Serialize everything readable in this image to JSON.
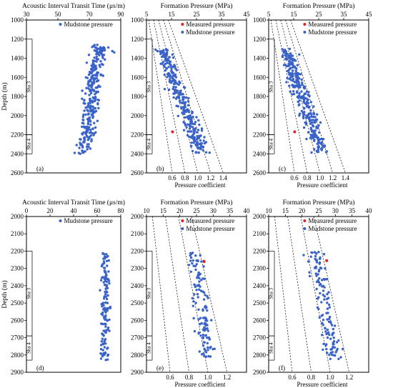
{
  "chart_data": [
    {
      "id": "a",
      "type": "scatter",
      "panel_label": "(a)",
      "title": "Acoustic Interval Transit Time (μs/m)",
      "ylabel": "Depth (m)",
      "xlim": [
        30,
        90
      ],
      "ylim": [
        1000,
        2600
      ],
      "xticks": [
        30,
        50,
        70,
        90
      ],
      "yticks": [
        1000,
        1200,
        1400,
        1600,
        1800,
        2000,
        2200,
        2400,
        2600
      ],
      "legend": [
        {
          "label": "Mudstone pressure",
          "color": "#3a63c9"
        }
      ],
      "units": [
        {
          "label": "Sha 3",
          "from": 1200,
          "to": 2200
        },
        {
          "label": "Sha 4",
          "from": 2200,
          "to": 2400
        }
      ],
      "cloud": {
        "depth_from": 1260,
        "depth_to": 2400,
        "x_from": [
          76,
          78
        ],
        "x_to": [
          62,
          70
        ],
        "spread": 6,
        "count": 300,
        "seed": 11
      },
      "measured": [],
      "coefficient_lines": []
    },
    {
      "id": "b",
      "type": "scatter",
      "panel_label": "(b)",
      "title": "Formation Pressure (MPa)",
      "xlabel": "Pressure coefficient",
      "xlim": [
        5,
        45
      ],
      "ylim": [
        1000,
        2600
      ],
      "xticks": [
        5,
        15,
        25,
        35,
        45
      ],
      "yticks": [
        1000,
        1200,
        1400,
        1600,
        1800,
        2000,
        2200,
        2400,
        2600
      ],
      "legend": [
        {
          "label": "Measured pressure",
          "color": "#e02020"
        },
        {
          "label": "Mudstone pressure",
          "color": "#3a63c9"
        }
      ],
      "units": [
        {
          "label": "Sha 3",
          "from": 1200,
          "to": 2200
        },
        {
          "label": "Sha 4",
          "from": 2200,
          "to": 2400
        }
      ],
      "cloud": {
        "depth_from": 1300,
        "depth_to": 2390,
        "x_from": [
          10,
          13
        ],
        "x_to": [
          24,
          30
        ],
        "spread": 3.2,
        "count": 300,
        "seed": 23
      },
      "measured": [
        {
          "pressure": 15.4,
          "depth": 2170
        }
      ],
      "coefficient_lines": [
        0.6,
        0.8,
        1.0,
        1.2,
        1.4
      ]
    },
    {
      "id": "c",
      "type": "scatter",
      "panel_label": "(c)",
      "title": "Formation Pressure (MPa)",
      "xlabel": "Pressure coefficient",
      "xlim": [
        5,
        45
      ],
      "ylim": [
        1000,
        2600
      ],
      "xticks": [
        5,
        15,
        25,
        35,
        45
      ],
      "yticks": [
        1000,
        1200,
        1400,
        1600,
        1800,
        2000,
        2200,
        2400,
        2600
      ],
      "legend": [
        {
          "label": "Measured pressure",
          "color": "#e02020"
        },
        {
          "label": "Mudstone pressure",
          "color": "#3a63c9"
        }
      ],
      "units": [
        {
          "label": "Sha 3",
          "from": 1200,
          "to": 2200
        },
        {
          "label": "Sha 4",
          "from": 2200,
          "to": 2400
        }
      ],
      "cloud": {
        "depth_from": 1300,
        "depth_to": 2390,
        "x_from": [
          10,
          13
        ],
        "x_to": [
          23,
          29
        ],
        "spread": 3.6,
        "count": 300,
        "seed": 37
      },
      "measured": [
        {
          "pressure": 15.4,
          "depth": 2170
        }
      ],
      "coefficient_lines": [
        0.6,
        0.8,
        1.0,
        1.2,
        1.4
      ]
    },
    {
      "id": "d",
      "type": "scatter",
      "panel_label": "(d)",
      "title": "Acoustic Interval Transit Time (μs/m)",
      "ylabel": "Depth (m)",
      "xlim": [
        0,
        80
      ],
      "ylim": [
        2000,
        2900
      ],
      "xticks": [
        0,
        20,
        40,
        60,
        80
      ],
      "yticks": [
        2000,
        2100,
        2200,
        2300,
        2400,
        2500,
        2600,
        2700,
        2800,
        2900
      ],
      "legend": [
        {
          "label": "Mudstone pressure",
          "color": "#3a63c9"
        }
      ],
      "units": [
        {
          "label": "Sha 3",
          "from": 2200,
          "to": 2690
        },
        {
          "label": "Sha 4",
          "from": 2690,
          "to": 2830
        }
      ],
      "cloud": {
        "depth_from": 2205,
        "depth_to": 2830,
        "x_from": [
          62,
          72
        ],
        "x_to": [
          60,
          72
        ],
        "spread": 4,
        "count": 140,
        "seed": 41
      },
      "measured": [],
      "coefficient_lines": []
    },
    {
      "id": "e",
      "type": "scatter",
      "panel_label": "(e)",
      "title": "Formation Pressure (MPa)",
      "xlabel": "Pressure coefficient",
      "xlim": [
        10,
        40
      ],
      "ylim": [
        2000,
        2900
      ],
      "xticks": [
        10,
        15,
        20,
        25,
        30,
        35,
        40
      ],
      "yticks": [
        2000,
        2100,
        2200,
        2300,
        2400,
        2500,
        2600,
        2700,
        2800,
        2900
      ],
      "legend": [
        {
          "label": "Measured pressure",
          "color": "#e02020"
        },
        {
          "label": "Mudstone pressure",
          "color": "#3a63c9"
        }
      ],
      "units": [
        {
          "label": "Sha 3",
          "from": 2200,
          "to": 2690
        },
        {
          "label": "Sha 4",
          "from": 2690,
          "to": 2830
        }
      ],
      "cloud": {
        "depth_from": 2205,
        "depth_to": 2810,
        "x_from": [
          22,
          27
        ],
        "x_to": [
          25,
          32
        ],
        "spread": 2.4,
        "count": 130,
        "seed": 53
      },
      "measured": [
        {
          "pressure": 27.3,
          "depth": 2260
        }
      ],
      "coefficient_lines": [
        0.6,
        0.8,
        1.0,
        1.2
      ]
    },
    {
      "id": "f",
      "type": "scatter",
      "panel_label": "(f)",
      "title": "Formation Pressure (MPa)",
      "xlabel": "Pressure coefficient",
      "xlim": [
        10,
        40
      ],
      "ylim": [
        2000,
        2900
      ],
      "xticks": [
        10,
        15,
        20,
        25,
        30,
        35,
        40
      ],
      "yticks": [
        2000,
        2100,
        2200,
        2300,
        2400,
        2500,
        2600,
        2700,
        2800,
        2900
      ],
      "legend": [
        {
          "label": "Measured pressure",
          "color": "#e02020"
        },
        {
          "label": "Mudstone pressure",
          "color": "#3a63c9"
        }
      ],
      "units": [
        {
          "label": "Sha 3",
          "from": 2200,
          "to": 2690
        },
        {
          "label": "Sha 4",
          "from": 2690,
          "to": 2830
        }
      ],
      "cloud": {
        "depth_from": 2205,
        "depth_to": 2830,
        "x_from": [
          20,
          28
        ],
        "x_to": [
          25,
          34
        ],
        "spread": 2.8,
        "count": 130,
        "seed": 67
      },
      "measured": [
        {
          "pressure": 27.4,
          "depth": 2255
        }
      ],
      "coefficient_lines": [
        0.6,
        0.8,
        1.0,
        1.2
      ]
    }
  ]
}
